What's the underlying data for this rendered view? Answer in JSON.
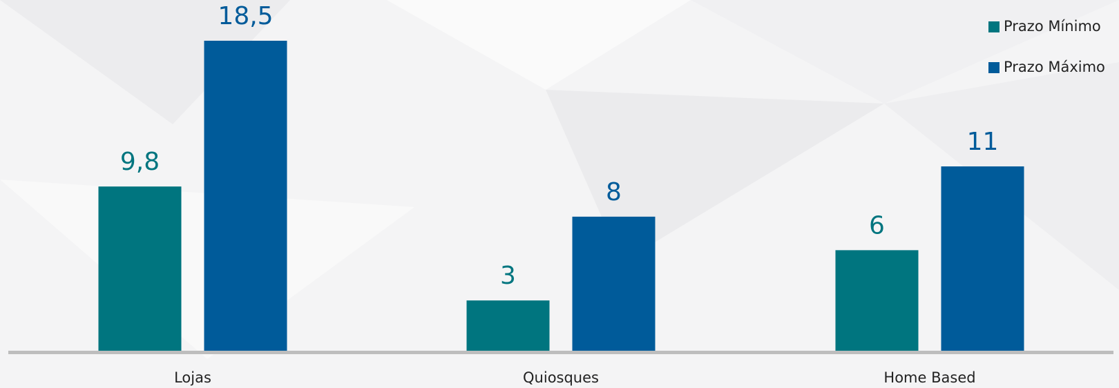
{
  "chart_data": {
    "type": "bar",
    "categories": [
      "Lojas",
      "Quiosques",
      "Home Based"
    ],
    "series": [
      {
        "name": "Prazo Mínimo",
        "color": "#00757f",
        "values": [
          9.8,
          3,
          6
        ],
        "value_labels": [
          "9,8",
          "3",
          "6"
        ]
      },
      {
        "name": "Prazo Máximo",
        "color": "#005b9a",
        "values": [
          18.5,
          8,
          11
        ],
        "value_labels": [
          "18,5",
          "8",
          "11"
        ]
      }
    ],
    "legend": "top-right"
  }
}
